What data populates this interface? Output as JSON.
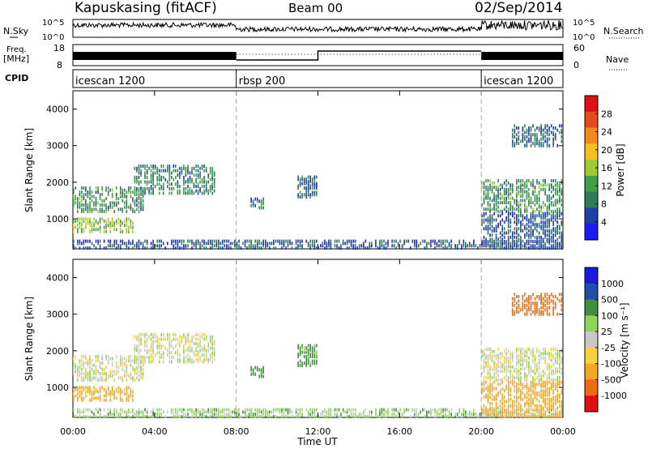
{
  "header": {
    "station": "Kapuskasing (fitACF)",
    "beam": "Beam 00",
    "date": "02/Sep/2014"
  },
  "noise_panel": {
    "left_label": "N.Sky",
    "right_label": "N.Search",
    "left_ticks": [
      "10^5",
      "10^0"
    ],
    "right_ticks": [
      "10^5",
      "10^0"
    ]
  },
  "freq_panel": {
    "left_label_line1": "Freq.",
    "left_label_line2": "[MHz]",
    "left_ticks": [
      "18",
      "8"
    ],
    "right_label": "Nave",
    "right_ticks": [
      "60",
      "0"
    ]
  },
  "cpid_panel": {
    "label": "CPID",
    "segments": [
      {
        "name": "icescan 1200",
        "start_hour": 0,
        "end_hour": 8
      },
      {
        "name": "rbsp 200",
        "start_hour": 8,
        "end_hour": 20
      },
      {
        "name": "icescan 1200",
        "start_hour": 20,
        "end_hour": 24
      }
    ]
  },
  "colors": {
    "power_scale": [
      "#1a1aff",
      "#1f3fa8",
      "#2e7d5a",
      "#3fa045",
      "#9ccc2e",
      "#f2c21a",
      "#f28a1a",
      "#e84a1a",
      "#e01010"
    ],
    "velocity_scale": [
      "#e01010",
      "#ef6a10",
      "#f5a623",
      "#f7d23a",
      "#c8c8c8",
      "#8ed45a",
      "#3f8f3f",
      "#1f4fa8",
      "#1a1ae0"
    ]
  },
  "chart_data": [
    {
      "type": "heatmap",
      "name": "power",
      "ylabel": "Slant Range [km]",
      "xlabel": "",
      "x_ticks": [
        "00:00",
        "04:00",
        "08:00",
        "12:00",
        "16:00",
        "20:00",
        "00:00"
      ],
      "xlim_hours": [
        0,
        24
      ],
      "y_ticks": [
        "1000",
        "2000",
        "3000",
        "4000"
      ],
      "ylim_km": [
        180,
        4500
      ],
      "colorbar_label": "Power [dB]",
      "colorbar_ticks": [
        "4",
        "8",
        "12",
        "16",
        "20",
        "24",
        "28"
      ],
      "colorbar_range": [
        0,
        30
      ],
      "echo_regions": [
        {
          "t0": 0.0,
          "t1": 3.5,
          "r0": 1200,
          "r1": 1900,
          "level": 10
        },
        {
          "t0": 0.0,
          "t1": 3.0,
          "r0": 650,
          "r1": 1050,
          "level": 14
        },
        {
          "t0": 3.0,
          "t1": 7.0,
          "r0": 1700,
          "r1": 2500,
          "level": 9
        },
        {
          "t0": 0.0,
          "t1": 24.0,
          "r0": 200,
          "r1": 450,
          "level": 6
        },
        {
          "t0": 8.7,
          "t1": 9.5,
          "r0": 1300,
          "r1": 1600,
          "level": 8
        },
        {
          "t0": 11.0,
          "t1": 12.0,
          "r0": 1600,
          "r1": 2200,
          "level": 7
        },
        {
          "t0": 20.0,
          "t1": 24.0,
          "r0": 1200,
          "r1": 2100,
          "level": 10
        },
        {
          "t0": 21.5,
          "t1": 24.0,
          "r0": 3000,
          "r1": 3600,
          "level": 7
        },
        {
          "t0": 20.0,
          "t1": 24.0,
          "r0": 200,
          "r1": 1200,
          "level": 6
        }
      ]
    },
    {
      "type": "heatmap",
      "name": "velocity",
      "ylabel": "Slant Range [km]",
      "xlabel": "Time UT",
      "x_ticks": [
        "00:00",
        "04:00",
        "08:00",
        "12:00",
        "16:00",
        "20:00",
        "00:00"
      ],
      "xlim_hours": [
        0,
        24
      ],
      "y_ticks": [
        "1000",
        "2000",
        "3000",
        "4000"
      ],
      "ylim_km": [
        180,
        4500
      ],
      "colorbar_label": "Velocity [m s⁻¹]",
      "colorbar_ticks": [
        "1000",
        "500",
        "100",
        "25",
        "-25",
        "-100",
        "-500",
        "-1000"
      ],
      "echo_regions": [
        {
          "t0": 0.0,
          "t1": 3.5,
          "r0": 1200,
          "r1": 1900,
          "velocity": 0
        },
        {
          "t0": 0.0,
          "t1": 3.0,
          "r0": 650,
          "r1": 1050,
          "velocity": -150
        },
        {
          "t0": 3.0,
          "t1": 7.0,
          "r0": 1700,
          "r1": 2500,
          "velocity": 0
        },
        {
          "t0": 0.0,
          "t1": 24.0,
          "r0": 200,
          "r1": 450,
          "velocity": 60
        },
        {
          "t0": 8.7,
          "t1": 9.5,
          "r0": 1300,
          "r1": 1600,
          "velocity": 200
        },
        {
          "t0": 11.0,
          "t1": 12.0,
          "r0": 1600,
          "r1": 2200,
          "velocity": 150
        },
        {
          "t0": 20.0,
          "t1": 24.0,
          "r0": 1200,
          "r1": 2100,
          "velocity": 0
        },
        {
          "t0": 21.5,
          "t1": 24.0,
          "r0": 3000,
          "r1": 3600,
          "velocity": -700
        },
        {
          "t0": 20.0,
          "t1": 24.0,
          "r0": 200,
          "r1": 1200,
          "velocity": -400
        }
      ]
    }
  ]
}
